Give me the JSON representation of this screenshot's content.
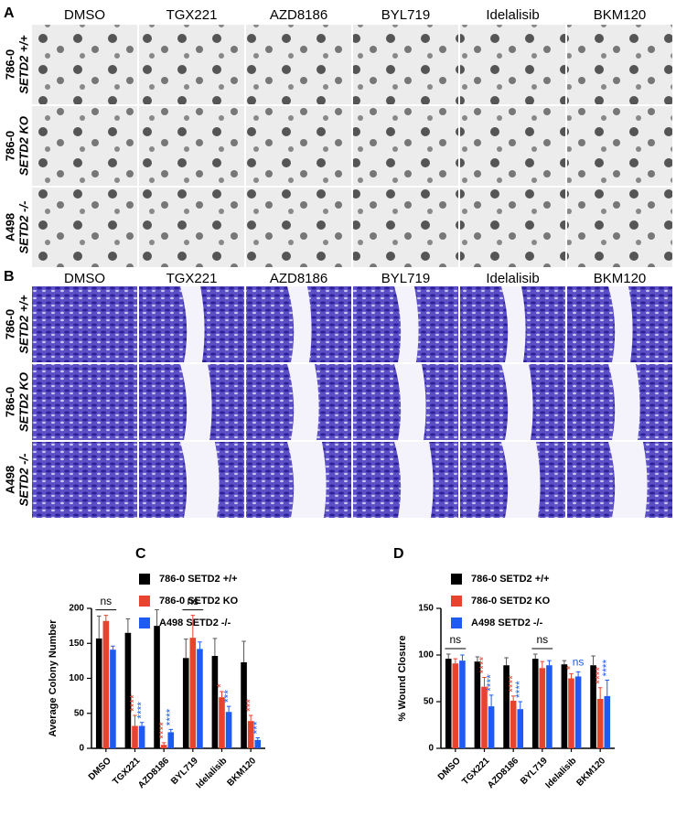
{
  "panels": [
    {
      "label": "A",
      "columns": [
        "DMSO",
        "TGX221",
        "AZD8186",
        "BYL719",
        "Idelalisib",
        "BKM120"
      ],
      "rows": [
        {
          "cell": "786-0",
          "genotype": "SETD2 +/+"
        },
        {
          "cell": "786-0",
          "genotype": "SETD2 KO"
        },
        {
          "cell": "A498",
          "genotype": "SETD2 -/-"
        }
      ]
    },
    {
      "label": "B",
      "columns": [
        "DMSO",
        "TGX221",
        "AZD8186",
        "BYL719",
        "Idelalisib",
        "BKM120"
      ],
      "rows": [
        {
          "cell": "786-0",
          "genotype": "SETD2 +/+"
        },
        {
          "cell": "786-0",
          "genotype": "SETD2 KO"
        },
        {
          "cell": "A498",
          "genotype": "SETD2 -/-"
        }
      ]
    }
  ],
  "chart_data": [
    {
      "type": "bar",
      "label": "C",
      "y_label": "Average Colony Number",
      "categories": [
        "DMSO",
        "TGX221",
        "AZD8186",
        "BYL719",
        "Idelalisib",
        "BKM120"
      ],
      "ylim": [
        0,
        200
      ],
      "yticks": [
        0,
        50,
        100,
        150,
        200
      ],
      "series": [
        {
          "name": "786-0 SETD2 +/+",
          "color": "#000000",
          "values": [
            157,
            165,
            175,
            129,
            132,
            123
          ],
          "errors": [
            32,
            20,
            23,
            27,
            25,
            30
          ],
          "stars": [
            null,
            null,
            null,
            null,
            null,
            null
          ]
        },
        {
          "name": "786-0 SETD2 KO",
          "color": "#e8432e",
          "values": [
            182,
            32,
            5,
            158,
            73,
            39
          ],
          "errors": [
            8,
            15,
            3,
            32,
            8,
            8
          ],
          "stars": [
            null,
            "****",
            "****",
            null,
            "*",
            "***"
          ]
        },
        {
          "name": "A498 SETD2 -/-",
          "color": "#1f5bf2",
          "values": [
            141,
            32,
            23,
            142,
            52,
            12
          ],
          "errors": [
            5,
            5,
            4,
            10,
            8,
            3
          ],
          "stars": [
            null,
            "****",
            "****",
            null,
            "***",
            "***"
          ]
        }
      ],
      "brackets": [
        {
          "text": "ns",
          "category": "DMSO"
        },
        {
          "text": "ns",
          "category": "BYL719"
        }
      ]
    },
    {
      "type": "bar",
      "label": "D",
      "y_label": "% Wound Closure",
      "categories": [
        "DMSO",
        "TGX221",
        "AZD8186",
        "BYL719",
        "Idelalisib",
        "BKM120"
      ],
      "ylim": [
        0,
        150
      ],
      "yticks": [
        0,
        50,
        100,
        150
      ],
      "series": [
        {
          "name": "786-0 SETD2 +/+",
          "color": "#000000",
          "values": [
            96,
            93,
            89,
            96,
            90,
            89
          ],
          "errors": [
            5,
            5,
            8,
            5,
            4,
            10
          ],
          "stars": [
            null,
            null,
            null,
            null,
            null,
            null
          ]
        },
        {
          "name": "786-0 SETD2 KO",
          "color": "#e8432e",
          "values": [
            91,
            66,
            51,
            86,
            75,
            53
          ],
          "errors": [
            5,
            10,
            5,
            7,
            5,
            12
          ],
          "stars": [
            null,
            "****",
            "****",
            null,
            "*",
            "****"
          ]
        },
        {
          "name": "A498 SETD2 -/-",
          "color": "#1f5bf2",
          "values": [
            94,
            45,
            42,
            89,
            77,
            56
          ],
          "errors": [
            6,
            12,
            8,
            5,
            5,
            17
          ],
          "stars": [
            null,
            "****",
            "****",
            null,
            "ns",
            "****"
          ]
        }
      ],
      "brackets": [
        {
          "text": "ns",
          "category": "DMSO"
        },
        {
          "text": "ns",
          "category": "BYL719"
        }
      ]
    }
  ]
}
